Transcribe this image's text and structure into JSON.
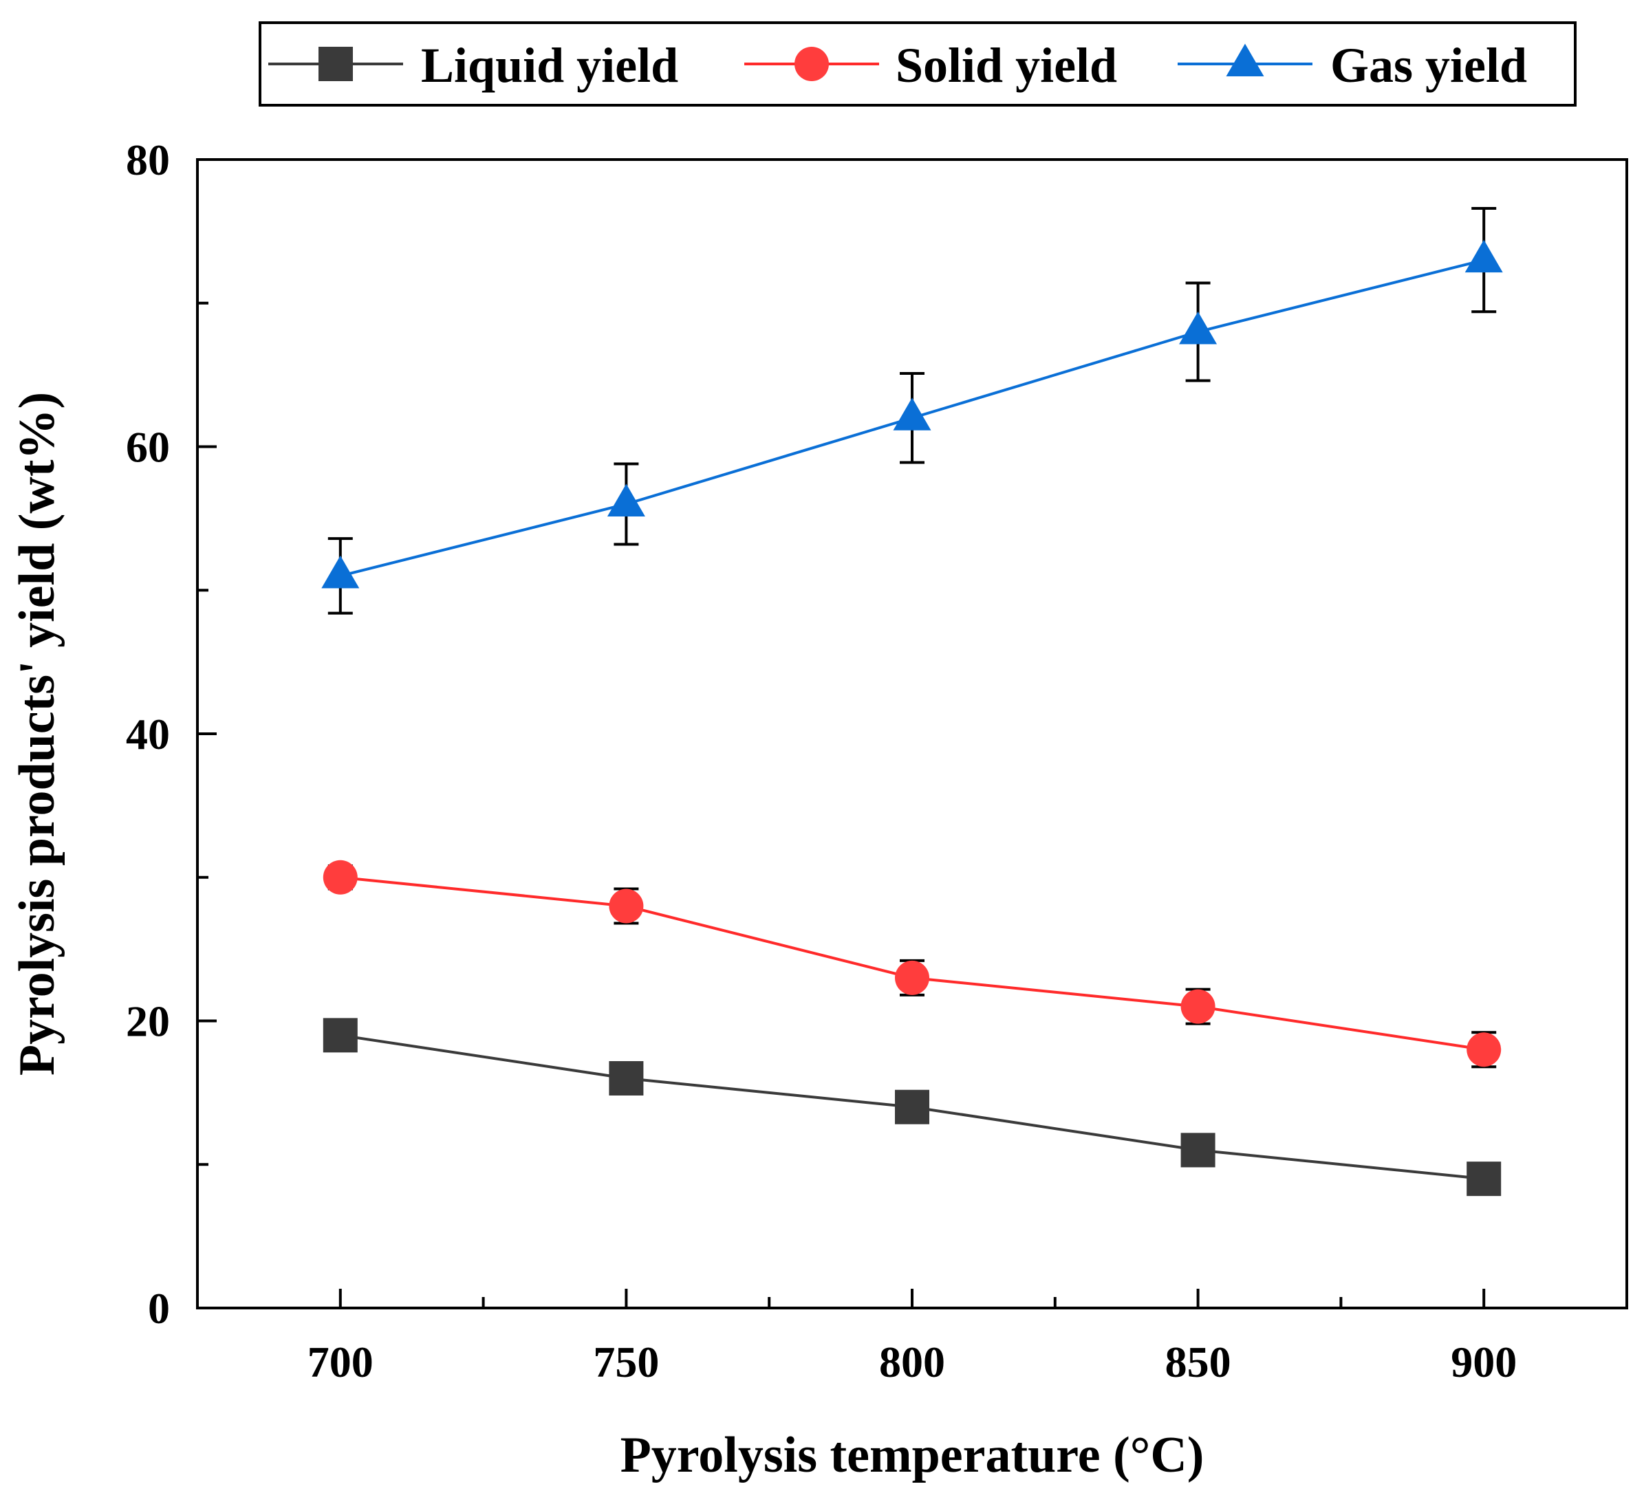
{
  "chart_data": {
    "type": "line",
    "title": "",
    "xlabel": "Pyrolysis temperature (°C)",
    "ylabel": "Pyrolysis products' yield (wt%)",
    "x": [
      700,
      750,
      800,
      850,
      900
    ],
    "x_tick_labels": [
      "700",
      "750",
      "800",
      "850",
      "900"
    ],
    "xlim": [
      675,
      925
    ],
    "ylim": [
      0,
      80
    ],
    "y_ticks": [
      0,
      20,
      40,
      60,
      80
    ],
    "y_tick_labels": [
      "0",
      "20",
      "40",
      "60",
      "80"
    ],
    "grid": false,
    "legend_position": "top, above plot",
    "series": [
      {
        "name": "Liquid yield",
        "marker": "square",
        "color": "#3a3a3a",
        "marker_color": "#3a3a3a",
        "values": [
          19,
          16,
          14,
          11,
          9
        ],
        "errors": [
          0.8,
          0.8,
          0.8,
          0.8,
          0.8
        ]
      },
      {
        "name": "Solid yield",
        "marker": "circle",
        "color": "#ff2a2a",
        "marker_color": "#ff3d3d",
        "values": [
          30,
          28,
          23,
          21,
          18
        ],
        "errors": [
          0.8,
          1.2,
          1.2,
          1.2,
          1.2
        ]
      },
      {
        "name": "Gas yield",
        "marker": "triangle",
        "color": "#0a6fd6",
        "marker_color": "#0a6fd6",
        "values": [
          51,
          56,
          62,
          68,
          73
        ],
        "errors": [
          2.6,
          2.8,
          3.1,
          3.4,
          3.6
        ]
      }
    ]
  }
}
